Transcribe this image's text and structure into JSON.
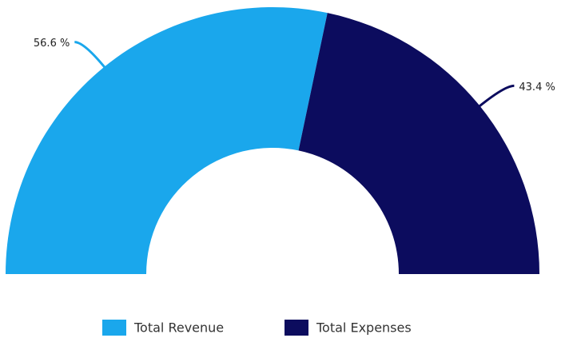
{
  "chart_data": {
    "type": "semi-donut",
    "categories": [
      "Total Revenue",
      "Total Expenses"
    ],
    "values": [
      56.6,
      43.4
    ],
    "value_labels": [
      "56.6 %",
      "43.4 %"
    ],
    "colors": [
      "#1aa7ec",
      "#0c0c5e"
    ],
    "legend": "bottom"
  }
}
